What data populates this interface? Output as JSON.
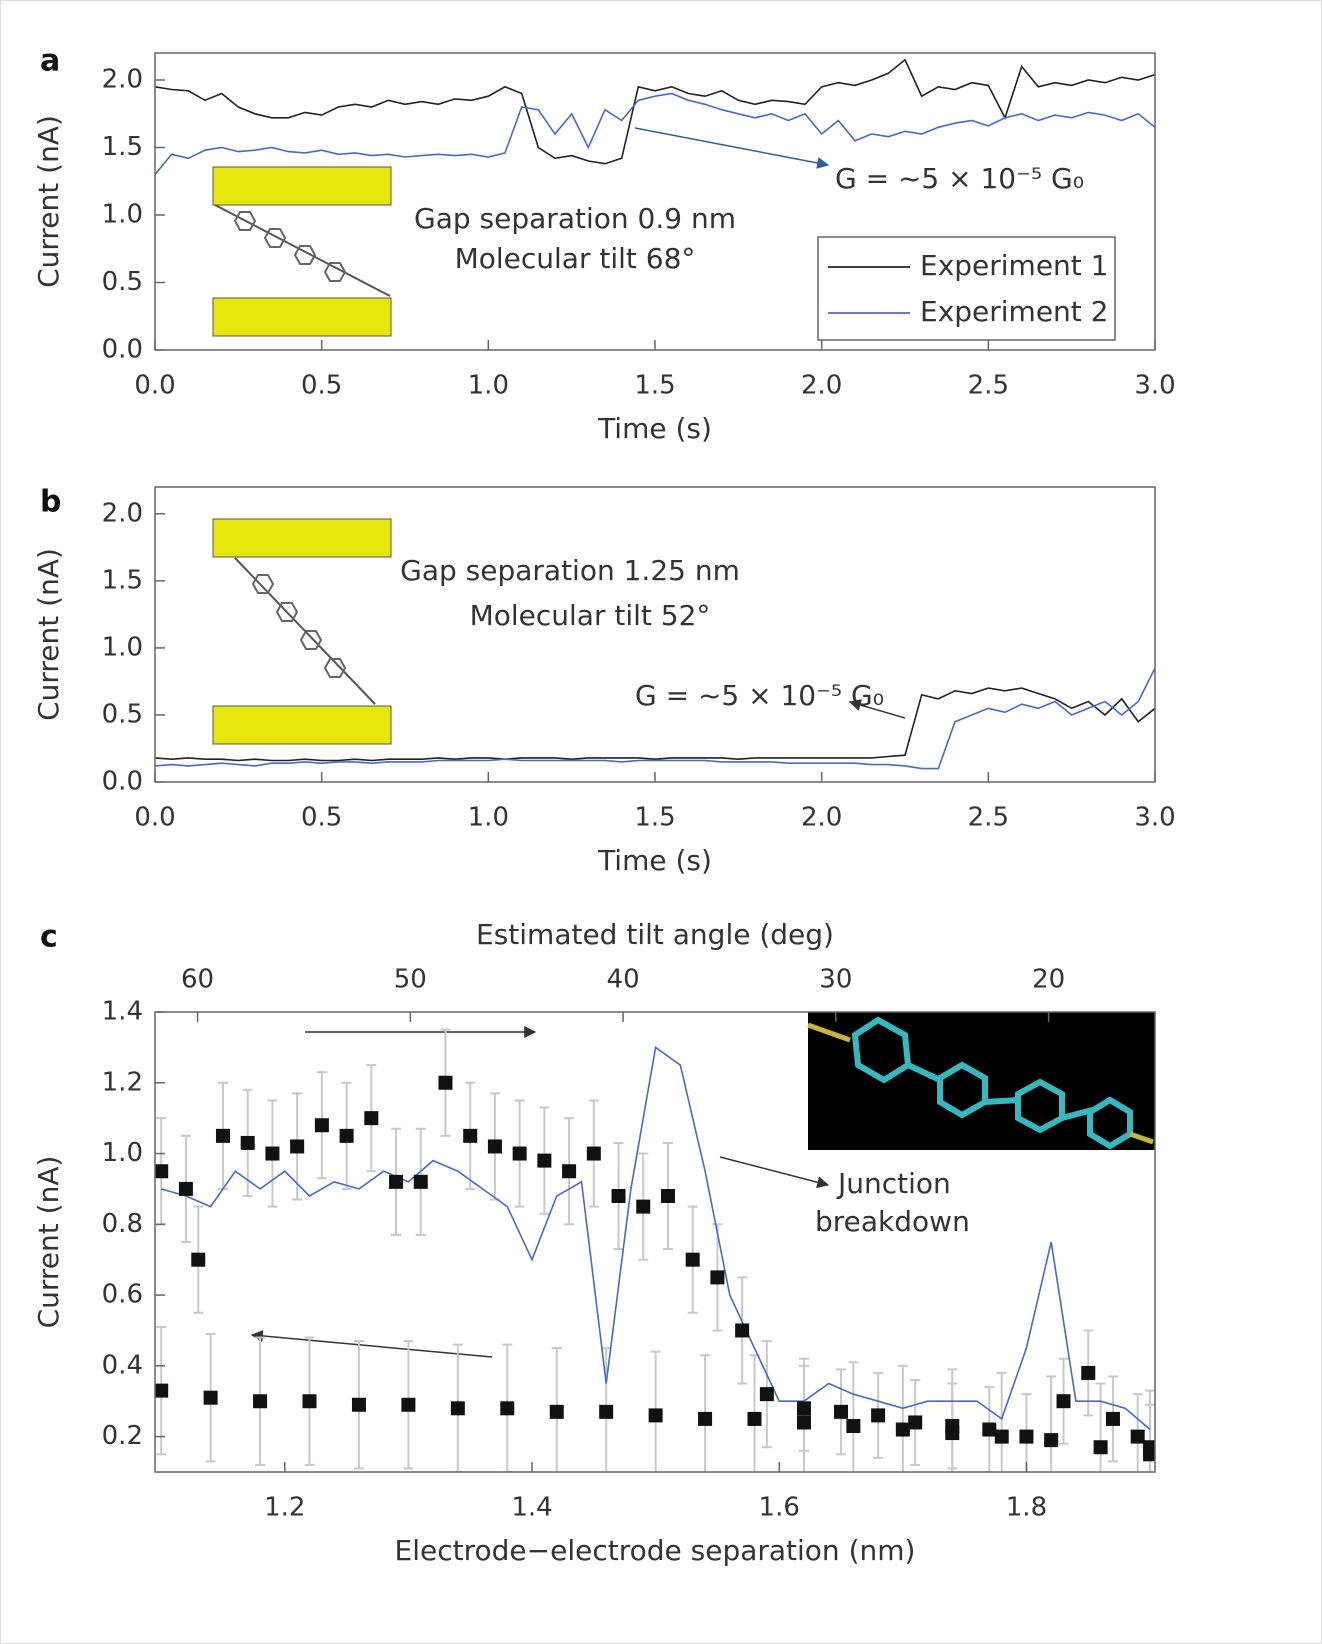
{
  "chart_data": [
    {
      "type": "line",
      "label": "a",
      "x": [
        0,
        0.05,
        0.1,
        0.15,
        0.2,
        0.25,
        0.3,
        0.35,
        0.4,
        0.45,
        0.5,
        0.55,
        0.6,
        0.65,
        0.7,
        0.75,
        0.8,
        0.85,
        0.9,
        0.95,
        1.0,
        1.05,
        1.1,
        1.15,
        1.2,
        1.25,
        1.3,
        1.35,
        1.4,
        1.45,
        1.5,
        1.55,
        1.6,
        1.65,
        1.7,
        1.75,
        1.8,
        1.85,
        1.9,
        1.95,
        2.0,
        2.05,
        2.1,
        2.15,
        2.2,
        2.25,
        2.3,
        2.35,
        2.4,
        2.45,
        2.5,
        2.55,
        2.6,
        2.65,
        2.7,
        2.75,
        2.8,
        2.85,
        2.9,
        2.95,
        3.0
      ],
      "series": [
        {
          "name": "Experiment 1",
          "color": "#222222",
          "values": [
            1.95,
            1.93,
            1.92,
            1.85,
            1.9,
            1.8,
            1.75,
            1.72,
            1.72,
            1.76,
            1.74,
            1.8,
            1.82,
            1.8,
            1.85,
            1.82,
            1.84,
            1.82,
            1.86,
            1.85,
            1.88,
            1.95,
            1.9,
            1.5,
            1.42,
            1.44,
            1.4,
            1.38,
            1.42,
            1.95,
            1.92,
            1.95,
            1.9,
            1.88,
            1.92,
            1.85,
            1.82,
            1.85,
            1.84,
            1.82,
            1.95,
            1.98,
            1.96,
            2.0,
            2.05,
            2.15,
            1.88,
            1.95,
            1.93,
            1.98,
            1.96,
            1.72,
            2.1,
            1.95,
            1.98,
            1.96,
            2.0,
            1.98,
            2.02,
            2.0,
            2.04
          ]
        },
        {
          "name": "Experiment 2",
          "color": "#4a68c8",
          "values": [
            1.3,
            1.45,
            1.42,
            1.48,
            1.5,
            1.47,
            1.48,
            1.5,
            1.47,
            1.46,
            1.48,
            1.45,
            1.46,
            1.44,
            1.45,
            1.43,
            1.44,
            1.45,
            1.44,
            1.45,
            1.43,
            1.46,
            1.8,
            1.78,
            1.6,
            1.75,
            1.5,
            1.78,
            1.7,
            1.85,
            1.88,
            1.9,
            1.85,
            1.82,
            1.78,
            1.75,
            1.72,
            1.75,
            1.7,
            1.75,
            1.6,
            1.7,
            1.55,
            1.6,
            1.58,
            1.62,
            1.6,
            1.65,
            1.68,
            1.7,
            1.66,
            1.72,
            1.75,
            1.7,
            1.74,
            1.72,
            1.76,
            1.74,
            1.7,
            1.75,
            1.65
          ]
        }
      ],
      "xlim": [
        0,
        3
      ],
      "ylim": [
        0,
        2.2
      ],
      "xticks": [
        {
          "value": 0,
          "label": "0.0"
        },
        0.5,
        {
          "value": 1,
          "label": "1.0"
        },
        1.5,
        {
          "value": 2,
          "label": "2.0"
        },
        2.5,
        {
          "value": 3,
          "label": "3.0"
        }
      ],
      "yticks": [
        {
          "value": 0,
          "label": "0.0"
        },
        0.5,
        {
          "value": 1,
          "label": "1.0"
        },
        1.5,
        {
          "value": 2,
          "label": "2.0"
        }
      ],
      "xlabel": "Time (s)",
      "ylabel": "Current (nA)",
      "annotations": [
        "G = ~5 × 10⁻⁵ G₀",
        "Gap separation 0.9 nm",
        "Molecular tilt 68°"
      ],
      "legend": "lower right",
      "grid": false
    },
    {
      "type": "line",
      "label": "b",
      "x": [
        0,
        0.05,
        0.1,
        0.15,
        0.2,
        0.25,
        0.3,
        0.35,
        0.4,
        0.45,
        0.5,
        0.55,
        0.6,
        0.65,
        0.7,
        0.75,
        0.8,
        0.85,
        0.9,
        0.95,
        1.0,
        1.05,
        1.1,
        1.15,
        1.2,
        1.25,
        1.3,
        1.35,
        1.4,
        1.45,
        1.5,
        1.55,
        1.6,
        1.65,
        1.7,
        1.75,
        1.8,
        1.85,
        1.9,
        1.95,
        2.0,
        2.05,
        2.1,
        2.15,
        2.2,
        2.25,
        2.3,
        2.35,
        2.4,
        2.45,
        2.5,
        2.55,
        2.6,
        2.65,
        2.7,
        2.75,
        2.8,
        2.85,
        2.9,
        2.95,
        3.0
      ],
      "series": [
        {
          "color": "#222222",
          "values": [
            0.18,
            0.17,
            0.18,
            0.17,
            0.17,
            0.16,
            0.17,
            0.16,
            0.16,
            0.17,
            0.16,
            0.16,
            0.17,
            0.16,
            0.17,
            0.17,
            0.17,
            0.18,
            0.17,
            0.18,
            0.18,
            0.17,
            0.18,
            0.18,
            0.18,
            0.17,
            0.18,
            0.18,
            0.18,
            0.18,
            0.17,
            0.18,
            0.18,
            0.18,
            0.18,
            0.17,
            0.18,
            0.18,
            0.18,
            0.18,
            0.18,
            0.18,
            0.18,
            0.18,
            0.19,
            0.2,
            0.65,
            0.62,
            0.68,
            0.66,
            0.7,
            0.68,
            0.7,
            0.66,
            0.62,
            0.55,
            0.6,
            0.5,
            0.62,
            0.45,
            0.55
          ]
        },
        {
          "color": "#4a68c8",
          "values": [
            0.12,
            0.13,
            0.12,
            0.13,
            0.14,
            0.13,
            0.12,
            0.14,
            0.14,
            0.15,
            0.14,
            0.15,
            0.15,
            0.14,
            0.15,
            0.15,
            0.15,
            0.16,
            0.16,
            0.16,
            0.16,
            0.17,
            0.16,
            0.16,
            0.16,
            0.16,
            0.16,
            0.16,
            0.15,
            0.16,
            0.16,
            0.16,
            0.16,
            0.16,
            0.15,
            0.15,
            0.15,
            0.15,
            0.14,
            0.14,
            0.14,
            0.14,
            0.14,
            0.13,
            0.13,
            0.12,
            0.1,
            0.1,
            0.45,
            0.5,
            0.55,
            0.52,
            0.58,
            0.55,
            0.6,
            0.5,
            0.55,
            0.6,
            0.5,
            0.6,
            0.85
          ]
        }
      ],
      "xlim": [
        0,
        3
      ],
      "ylim": [
        0,
        2.2
      ],
      "xticks": [
        {
          "value": 0,
          "label": "0.0"
        },
        0.5,
        {
          "value": 1,
          "label": "1.0"
        },
        1.5,
        {
          "value": 2,
          "label": "2.0"
        },
        2.5,
        {
          "value": 3,
          "label": "3.0"
        }
      ],
      "yticks": [
        {
          "value": 0,
          "label": "0.0"
        },
        0.5,
        {
          "value": 1,
          "label": "1.0"
        },
        1.5,
        {
          "value": 2,
          "label": "2.0"
        }
      ],
      "xlabel": "Time (s)",
      "ylabel": "Current (nA)",
      "annotations": [
        "Gap separation 1.25 nm",
        "Molecular tilt 52°",
        "G = ~5 × 10⁻⁵ G₀"
      ],
      "grid": false
    },
    {
      "type": "scatter",
      "label": "c",
      "series": [
        {
          "type": "line",
          "color": "#4a68c8",
          "x": [
            1.1,
            1.12,
            1.14,
            1.16,
            1.18,
            1.2,
            1.22,
            1.24,
            1.26,
            1.28,
            1.3,
            1.32,
            1.34,
            1.36,
            1.38,
            1.4,
            1.42,
            1.44,
            1.46,
            1.48,
            1.5,
            1.52,
            1.54,
            1.56,
            1.58,
            1.6,
            1.62,
            1.64,
            1.66,
            1.68,
            1.7,
            1.72,
            1.74,
            1.76,
            1.78,
            1.8,
            1.82,
            1.84,
            1.86,
            1.88,
            1.9
          ],
          "values": [
            0.9,
            0.88,
            0.85,
            0.95,
            0.9,
            0.95,
            0.88,
            0.92,
            0.9,
            0.95,
            0.92,
            0.98,
            0.95,
            0.9,
            0.85,
            0.7,
            0.88,
            0.92,
            0.35,
            0.9,
            1.3,
            1.25,
            0.95,
            0.6,
            0.45,
            0.3,
            0.3,
            0.35,
            0.32,
            0.3,
            0.28,
            0.3,
            0.3,
            0.3,
            0.25,
            0.45,
            0.75,
            0.3,
            0.3,
            0.28,
            0.22
          ]
        },
        {
          "type": "scatter",
          "color": "#111111",
          "x": [
            1.1,
            1.12,
            1.13,
            1.15,
            1.17,
            1.19,
            1.21,
            1.23,
            1.25,
            1.27,
            1.29,
            1.31,
            1.33,
            1.35,
            1.37,
            1.39,
            1.41,
            1.43,
            1.45,
            1.47,
            1.49,
            1.51,
            1.53,
            1.55,
            1.57,
            1.59,
            1.62,
            1.65,
            1.68,
            1.71,
            1.74,
            1.77,
            1.8,
            1.83,
            1.85,
            1.87,
            1.89,
            1.9
          ],
          "values": [
            0.95,
            0.9,
            0.7,
            1.05,
            1.03,
            1.0,
            1.02,
            1.08,
            1.05,
            1.1,
            0.92,
            0.92,
            1.2,
            1.05,
            1.02,
            1.0,
            0.98,
            0.95,
            1.0,
            0.88,
            0.85,
            0.88,
            0.7,
            0.65,
            0.5,
            0.32,
            0.28,
            0.27,
            0.26,
            0.24,
            0.23,
            0.22,
            0.2,
            0.3,
            0.38,
            0.25,
            0.2,
            0.17
          ],
          "errors": [
            0.15,
            0.15,
            0.15,
            0.15,
            0.15,
            0.15,
            0.15,
            0.15,
            0.15,
            0.15,
            0.15,
            0.15,
            0.15,
            0.15,
            0.15,
            0.15,
            0.15,
            0.15,
            0.15,
            0.15,
            0.15,
            0.15,
            0.15,
            0.15,
            0.15,
            0.15,
            0.12,
            0.12,
            0.12,
            0.12,
            0.12,
            0.12,
            0.12,
            0.12,
            0.12,
            0.12,
            0.12,
            0.12
          ],
          "error_color": "#c8c8c8"
        },
        {
          "type": "scatter",
          "color": "#111111",
          "x": [
            1.1,
            1.14,
            1.18,
            1.22,
            1.26,
            1.3,
            1.34,
            1.38,
            1.42,
            1.46,
            1.5,
            1.54,
            1.58,
            1.62,
            1.66,
            1.7,
            1.74,
            1.78,
            1.82,
            1.86,
            1.9
          ],
          "values": [
            0.33,
            0.31,
            0.3,
            0.3,
            0.29,
            0.29,
            0.28,
            0.28,
            0.27,
            0.27,
            0.26,
            0.25,
            0.25,
            0.24,
            0.23,
            0.22,
            0.21,
            0.2,
            0.19,
            0.17,
            0.15
          ],
          "errors": [
            0.18,
            0.18,
            0.18,
            0.18,
            0.18,
            0.18,
            0.18,
            0.18,
            0.18,
            0.18,
            0.18,
            0.18,
            0.18,
            0.18,
            0.18,
            0.18,
            0.18,
            0.18,
            0.18,
            0.18,
            0.18
          ],
          "error_color": "#c8c8c8"
        }
      ],
      "xlim": [
        1.095,
        1.904
      ],
      "ylim": [
        0.1,
        1.4
      ],
      "xticks": [
        1.2,
        1.4,
        1.6,
        1.8
      ],
      "yticks": [
        0.2,
        0.4,
        0.6,
        0.8,
        {
          "value": 1,
          "label": "1.0"
        },
        1.2,
        1.4
      ],
      "x2lim": [
        62,
        15
      ],
      "x2ticks": [
        60,
        50,
        40,
        30,
        20
      ],
      "xlabel": "Electrode−electrode separation (nm)",
      "x2label": "Estimated tilt angle (deg)",
      "ylabel": "Current (nA)",
      "annotations": [
        "Junction",
        "breakdown"
      ],
      "grid": false
    }
  ]
}
